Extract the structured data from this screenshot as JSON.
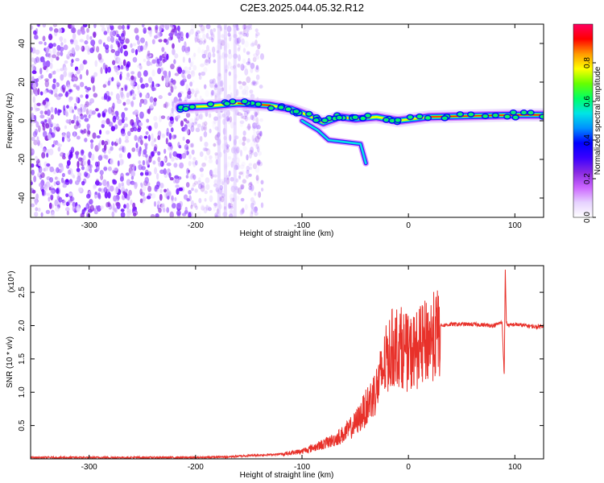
{
  "title": "C2E3.2025.044.05.32.R12",
  "colors": {
    "snr_line": "#e8312a",
    "axis": "#000000",
    "colormap": [
      "#ffffff",
      "#e6d2ff",
      "#cc66ff",
      "#8a2be2",
      "#3a00ff",
      "#0000ff",
      "#0090ff",
      "#00e5e5",
      "#00ff66",
      "#66ff00",
      "#ffff00",
      "#ff9900",
      "#ff0000",
      "#ff0060"
    ]
  },
  "chart_data": [
    {
      "type": "heatmap",
      "xlabel": "Height of straight line (km)",
      "ylabel": "Frequency (Hz)",
      "xlim": [
        -355,
        127
      ],
      "ylim": [
        -50,
        50
      ],
      "xticks": [
        -300,
        -200,
        -100,
        0,
        100
      ],
      "yticks": [
        -40,
        -20,
        0,
        20,
        40
      ],
      "colorbar": {
        "label": "Normalized spectral amplitude",
        "range": [
          0,
          1
        ],
        "ticks": [
          "0.0",
          "0.2",
          "0.4",
          "0.6",
          "0.8"
        ]
      },
      "noise_region": {
        "x_start": -355,
        "x_end": -160,
        "freq_range": [
          -50,
          50
        ]
      },
      "ridge": [
        {
          "x": -215,
          "y": 7
        },
        {
          "x": -190,
          "y": 7.5
        },
        {
          "x": -160,
          "y": 9
        },
        {
          "x": -130,
          "y": 8
        },
        {
          "x": -110,
          "y": 6
        },
        {
          "x": -95,
          "y": 3
        },
        {
          "x": -80,
          "y": -1
        },
        {
          "x": -65,
          "y": 2
        },
        {
          "x": -50,
          "y": 1
        },
        {
          "x": -30,
          "y": 2
        },
        {
          "x": -10,
          "y": 0
        },
        {
          "x": 20,
          "y": 2
        },
        {
          "x": 60,
          "y": 2.5
        },
        {
          "x": 100,
          "y": 3
        },
        {
          "x": 127,
          "y": 3
        }
      ],
      "branch": [
        {
          "x": -100,
          "y": 0
        },
        {
          "x": -85,
          "y": -5
        },
        {
          "x": -75,
          "y": -10
        },
        {
          "x": -60,
          "y": -11
        },
        {
          "x": -45,
          "y": -12
        },
        {
          "x": -40,
          "y": -22
        }
      ]
    },
    {
      "type": "line",
      "xlabel": "Height of straight line (km)",
      "ylabel": "SNR (10 * v/v)",
      "y_multiplier": "(x10⁴)",
      "xlim": [
        -355,
        127
      ],
      "ylim": [
        0,
        2.9
      ],
      "xticks": [
        -300,
        -200,
        -100,
        0,
        100
      ],
      "yticks": [
        "0.5",
        "1.0",
        "1.5",
        "2.0",
        "2.5"
      ],
      "series": [
        {
          "x": [
            -355,
            -300,
            -250,
            -200,
            -170,
            -150,
            -120,
            -100,
            -85,
            -70,
            -60,
            -50,
            -40,
            -30,
            -25,
            -20,
            -15,
            -10,
            -5,
            0,
            10,
            20,
            30,
            40,
            60,
            80,
            88,
            90,
            91,
            92,
            94,
            100,
            110,
            120,
            127
          ],
          "y": [
            0.02,
            0.02,
            0.02,
            0.02,
            0.03,
            0.05,
            0.07,
            0.12,
            0.2,
            0.3,
            0.4,
            0.55,
            0.8,
            1.1,
            1.35,
            1.6,
            1.75,
            1.8,
            1.75,
            1.65,
            1.75,
            1.9,
            2.0,
            2.02,
            2.02,
            2.0,
            2.05,
            1.25,
            2.85,
            2.05,
            2.0,
            2.02,
            2.0,
            1.98,
            2.0
          ]
        }
      ]
    }
  ]
}
